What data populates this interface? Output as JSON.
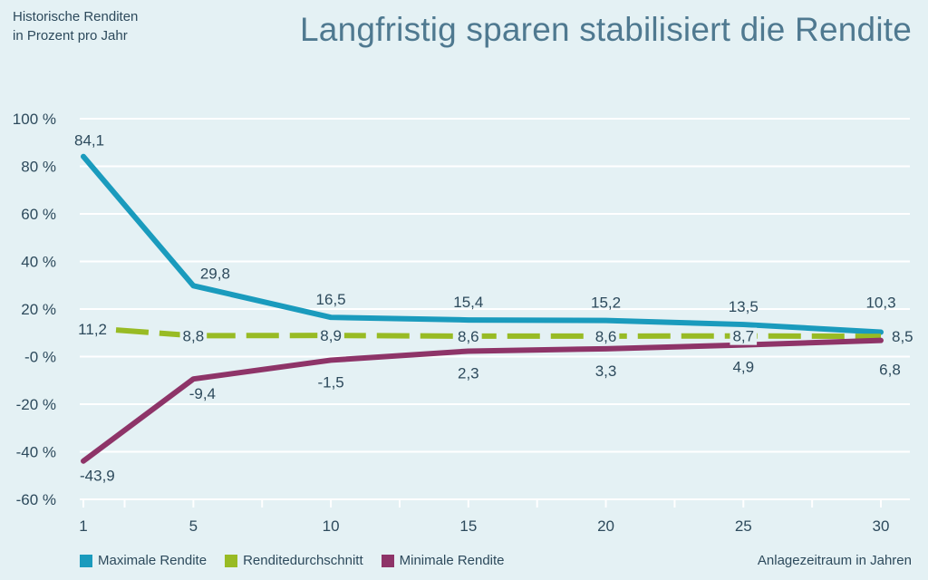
{
  "header": {
    "ylabel_line1": "Historische Renditen",
    "ylabel_line2": "in Prozent pro Jahr"
  },
  "chart_data": {
    "type": "line",
    "title": "Langfristig sparen stabilisiert die Rendite",
    "ylabel": "Historische Renditen in Prozent pro Jahr",
    "xlabel": "Anlagezeitraum in Jahren",
    "x": [
      1,
      5,
      10,
      15,
      20,
      25,
      30
    ],
    "x_tick_labels": [
      "1",
      "5",
      "10",
      "15",
      "20",
      "25",
      "30"
    ],
    "ylim": [
      -60,
      100
    ],
    "y_ticks": [
      100,
      80,
      60,
      40,
      20,
      0,
      -20,
      -40,
      -60
    ],
    "y_tick_labels": [
      "100 %",
      "80 %",
      "60 %",
      "40 %",
      "20 %",
      "-0 %",
      "-20 %",
      "-40 %",
      "-60 %"
    ],
    "grid": true,
    "series": [
      {
        "name": "Maximale Rendite",
        "color": "#1a9bbd",
        "dashed": false,
        "values": [
          84.1,
          29.8,
          16.5,
          15.4,
          15.2,
          13.5,
          10.3
        ],
        "labels": [
          "84,1",
          "29,8",
          "16,5",
          "15,4",
          "15,2",
          "13,5",
          "10,3"
        ]
      },
      {
        "name": "Renditedurchschnitt",
        "color": "#98bb24",
        "dashed": true,
        "values": [
          11.2,
          8.8,
          8.9,
          8.6,
          8.6,
          8.7,
          8.5
        ],
        "labels": [
          "11,2",
          "8,8",
          "8,9",
          "8,6",
          "8,6",
          "8,7",
          "8,5"
        ]
      },
      {
        "name": "Minimale Rendite",
        "color": "#8e3468",
        "dashed": false,
        "values": [
          -43.9,
          -9.4,
          -1.5,
          2.3,
          3.3,
          4.9,
          6.8
        ],
        "labels": [
          "-43,9",
          "-9,4",
          "-1,5",
          "2,3",
          "3,3",
          "4,9",
          "6,8"
        ]
      }
    ],
    "legend_position": "bottom-left"
  }
}
